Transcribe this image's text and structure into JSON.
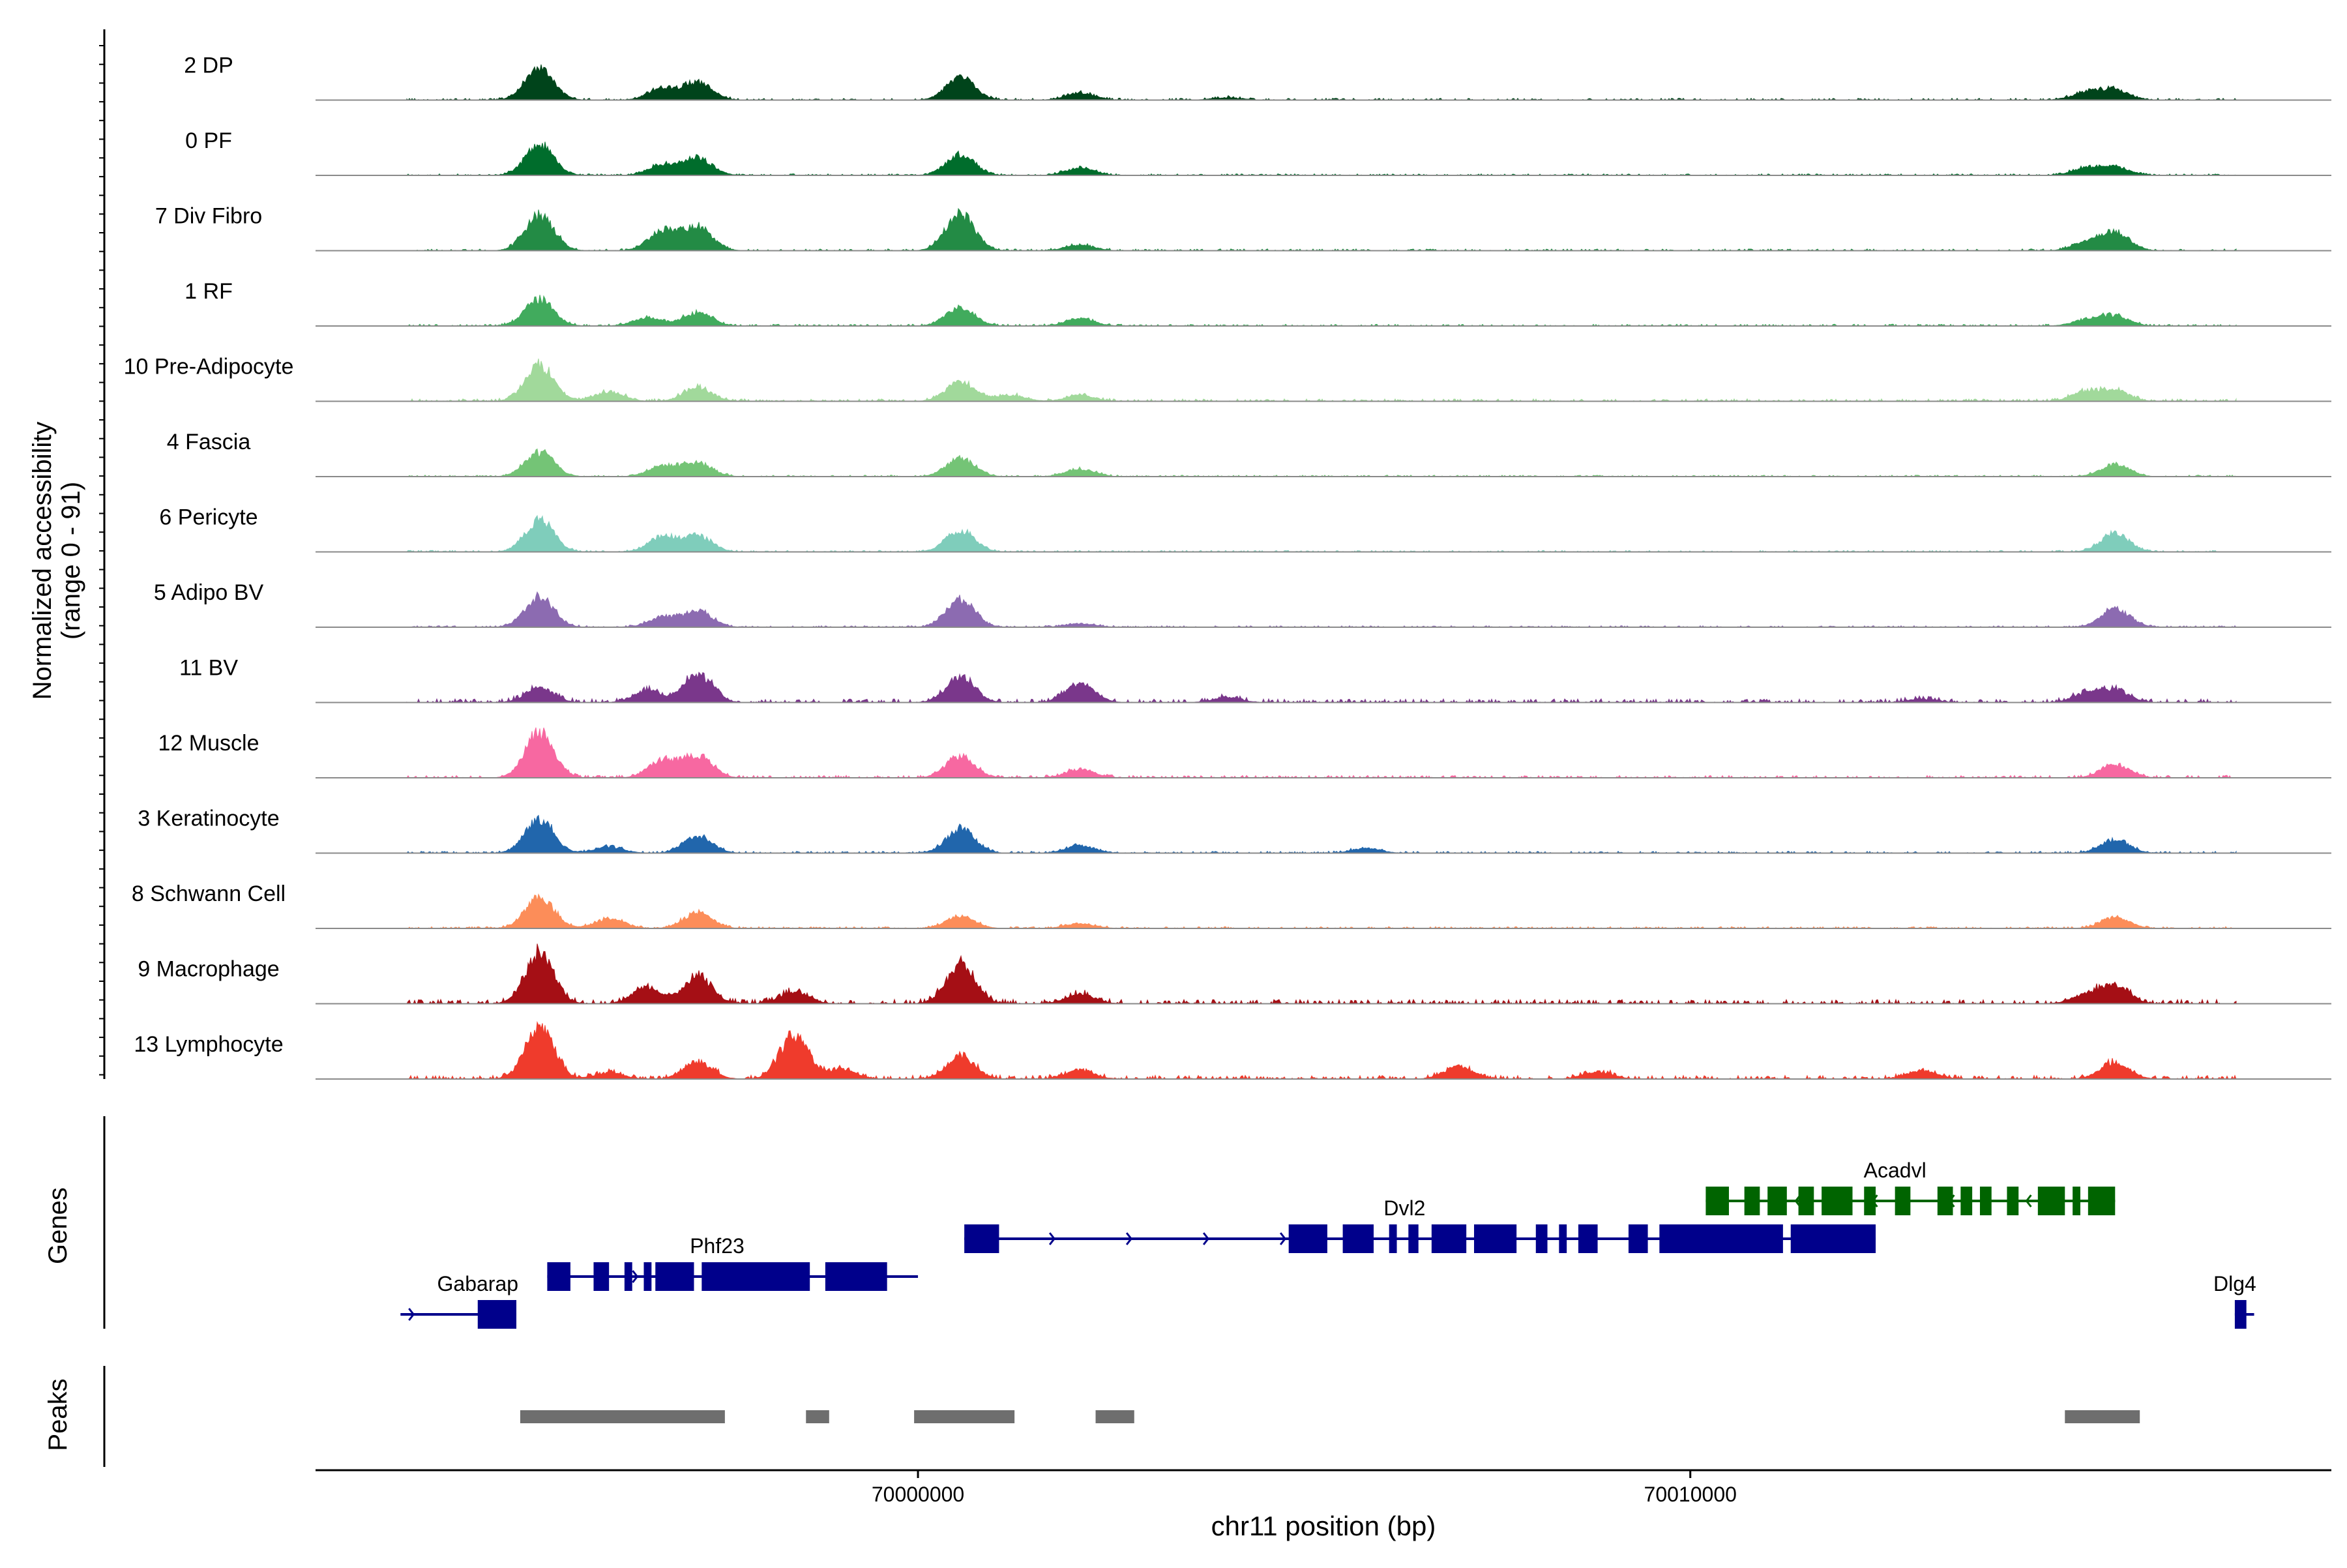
{
  "chart_data": {
    "type": "area",
    "title": "",
    "xlabel": "chr11 position (bp)",
    "ylabel_line1": "Normalized accessibility",
    "ylabel_line2": "(range 0 - 91)",
    "y_range": [
      0,
      91
    ],
    "xlim": [
      69992200,
      70018300
    ],
    "x_ticks": [
      {
        "value": 70000000,
        "label": "70000000"
      },
      {
        "value": 70010000,
        "label": "70010000"
      }
    ],
    "peak_positions": [
      69995430,
      69996800,
      69997700,
      69998450,
      70000530,
      70002150,
      70017050,
      70017980,
      70018100
    ],
    "tracks": [
      {
        "name": "2 DP",
        "color": "#00441b",
        "peaks": [
          [
            69995100,
            0.52
          ],
          [
            69996700,
            0.2
          ],
          [
            69997150,
            0.28
          ],
          [
            70000550,
            0.38
          ],
          [
            70002100,
            0.12
          ],
          [
            70004000,
            0.04
          ],
          [
            70015130,
            0.13
          ],
          [
            70015500,
            0.16
          ]
        ],
        "noise": 0.03
      },
      {
        "name": "0 PF",
        "color": "#006d2c",
        "peaks": [
          [
            69995100,
            0.5
          ],
          [
            69996700,
            0.18
          ],
          [
            69997150,
            0.28
          ],
          [
            70000550,
            0.35
          ],
          [
            70002100,
            0.12
          ],
          [
            70015130,
            0.12
          ],
          [
            70015500,
            0.14
          ]
        ],
        "noise": 0.025
      },
      {
        "name": "7 Div Fibro",
        "color": "#238b45",
        "peaks": [
          [
            69995100,
            0.58
          ],
          [
            69996700,
            0.33
          ],
          [
            69997150,
            0.38
          ],
          [
            70000550,
            0.6
          ],
          [
            70002100,
            0.09
          ],
          [
            70015130,
            0.12
          ],
          [
            70015500,
            0.3
          ]
        ],
        "noise": 0.03
      },
      {
        "name": "1 RF",
        "color": "#41ab5d",
        "peaks": [
          [
            69995100,
            0.44
          ],
          [
            69996500,
            0.14
          ],
          [
            69997150,
            0.22
          ],
          [
            70000550,
            0.3
          ],
          [
            70002100,
            0.12
          ],
          [
            70015130,
            0.1
          ],
          [
            70015500,
            0.16
          ]
        ],
        "noise": 0.03
      },
      {
        "name": "10 Pre-Adipocyte",
        "color": "#a1d99b",
        "peaks": [
          [
            69995100,
            0.58
          ],
          [
            69996000,
            0.16
          ],
          [
            69997150,
            0.22
          ],
          [
            70000550,
            0.32
          ],
          [
            70001200,
            0.1
          ],
          [
            70002100,
            0.1
          ],
          [
            70015130,
            0.16
          ],
          [
            70015500,
            0.16
          ]
        ],
        "noise": 0.04
      },
      {
        "name": "4 Fascia",
        "color": "#74c476",
        "peaks": [
          [
            69995100,
            0.4
          ],
          [
            69996700,
            0.18
          ],
          [
            69997150,
            0.22
          ],
          [
            70000550,
            0.3
          ],
          [
            70002100,
            0.12
          ],
          [
            70015500,
            0.2
          ]
        ],
        "noise": 0.025
      },
      {
        "name": "6 Pericyte",
        "color": "#7fcdbb",
        "peaks": [
          [
            69995100,
            0.52
          ],
          [
            69996700,
            0.24
          ],
          [
            69997150,
            0.26
          ],
          [
            70000550,
            0.36
          ],
          [
            70015500,
            0.3
          ]
        ],
        "noise": 0.025
      },
      {
        "name": "5 Adipo BV",
        "color": "#8c6bb1",
        "peaks": [
          [
            69995100,
            0.5
          ],
          [
            69996700,
            0.16
          ],
          [
            69997150,
            0.26
          ],
          [
            70000550,
            0.46
          ],
          [
            70002100,
            0.06
          ],
          [
            70015500,
            0.3
          ]
        ],
        "noise": 0.025
      },
      {
        "name": "11 BV",
        "color": "#7a378b",
        "peaks": [
          [
            69995100,
            0.24
          ],
          [
            69996500,
            0.2
          ],
          [
            69997150,
            0.46
          ],
          [
            70000550,
            0.42
          ],
          [
            70002100,
            0.32
          ],
          [
            70004000,
            0.08
          ],
          [
            70013000,
            0.06
          ],
          [
            70015130,
            0.14
          ],
          [
            70015500,
            0.2
          ]
        ],
        "noise": 0.06
      },
      {
        "name": "12 Muscle",
        "color": "#f768a1",
        "peaks": [
          [
            69995100,
            0.74
          ],
          [
            69996700,
            0.3
          ],
          [
            69997150,
            0.36
          ],
          [
            70000550,
            0.36
          ],
          [
            70002100,
            0.14
          ],
          [
            70015500,
            0.22
          ]
        ],
        "noise": 0.04
      },
      {
        "name": "3 Keratinocyte",
        "color": "#2166ac",
        "peaks": [
          [
            69995100,
            0.56
          ],
          [
            69996000,
            0.1
          ],
          [
            69997150,
            0.28
          ],
          [
            70000550,
            0.4
          ],
          [
            70002100,
            0.12
          ],
          [
            70005800,
            0.08
          ],
          [
            70015500,
            0.22
          ]
        ],
        "noise": 0.03
      },
      {
        "name": "8 Schwann Cell",
        "color": "#fc8d59",
        "peaks": [
          [
            69995100,
            0.52
          ],
          [
            69996000,
            0.16
          ],
          [
            69997150,
            0.26
          ],
          [
            70000550,
            0.2
          ],
          [
            70002100,
            0.08
          ],
          [
            70015500,
            0.18
          ]
        ],
        "noise": 0.03
      },
      {
        "name": "9 Macrophage",
        "color": "#a50f15",
        "peaks": [
          [
            69995100,
            0.82
          ],
          [
            69996500,
            0.28
          ],
          [
            69997150,
            0.44
          ],
          [
            69998400,
            0.2
          ],
          [
            70000550,
            0.64
          ],
          [
            70002100,
            0.16
          ],
          [
            70015130,
            0.14
          ],
          [
            70015500,
            0.3
          ]
        ],
        "noise": 0.07
      },
      {
        "name": "13 Lymphocyte",
        "color": "#ef3b2c",
        "peaks": [
          [
            69995100,
            0.88
          ],
          [
            69996000,
            0.1
          ],
          [
            69997150,
            0.28
          ],
          [
            69998400,
            0.72
          ],
          [
            69999000,
            0.16
          ],
          [
            70000550,
            0.36
          ],
          [
            70002100,
            0.14
          ],
          [
            70007000,
            0.2
          ],
          [
            70008800,
            0.12
          ],
          [
            70013000,
            0.14
          ],
          [
            70015500,
            0.28
          ]
        ],
        "noise": 0.06
      }
    ],
    "genes": [
      {
        "name": "Gabarap",
        "strand": "+",
        "color": "#00008b",
        "row": 0,
        "start": 69993300,
        "end": 69994800,
        "exons": [
          [
            69994300,
            69994800
          ]
        ],
        "label_x": 69994300
      },
      {
        "name": "Phf23",
        "strand": "+",
        "color": "#00008b",
        "row": 1,
        "start": 69995200,
        "end": 70000000,
        "exons": [
          [
            69995200,
            69995500
          ],
          [
            69995800,
            69996000
          ],
          [
            69996200,
            69996300
          ],
          [
            69996450,
            69996550
          ],
          [
            69996600,
            69997100
          ],
          [
            69997200,
            69998600
          ],
          [
            69998800,
            69999600
          ]
        ],
        "label_x": 69997400
      },
      {
        "name": "Dvl2",
        "strand": "+",
        "color": "#00008b",
        "row": 2,
        "start": 70000600,
        "end": 70012400,
        "exons": [
          [
            70000600,
            70001050
          ],
          [
            70004800,
            70005300
          ],
          [
            70005500,
            70005900
          ],
          [
            70006100,
            70006200
          ],
          [
            70006350,
            70006480
          ],
          [
            70006650,
            70007100
          ],
          [
            70007200,
            70007750
          ],
          [
            70008000,
            70008150
          ],
          [
            70008300,
            70008400
          ],
          [
            70008550,
            70008800
          ],
          [
            70009200,
            70009450
          ],
          [
            70009600,
            70011200
          ],
          [
            70011300,
            70012400
          ]
        ],
        "label_x": 70006300
      },
      {
        "name": "Acadvl",
        "strand": "-",
        "color": "#006400",
        "row": 3,
        "start": 70010200,
        "end": 70015500,
        "exons": [
          [
            70010200,
            70010500
          ],
          [
            70010700,
            70010900
          ],
          [
            70011000,
            70011250
          ],
          [
            70011400,
            70011600
          ],
          [
            70011700,
            70012100
          ],
          [
            70012250,
            70012400
          ],
          [
            70012650,
            70012850
          ],
          [
            70013200,
            70013400
          ],
          [
            70013500,
            70013650
          ],
          [
            70013750,
            70013900
          ],
          [
            70014100,
            70014250
          ],
          [
            70014500,
            70014850
          ],
          [
            70014950,
            70015050
          ],
          [
            70015150,
            70015250
          ],
          [
            70015300,
            70015400
          ],
          [
            70015200,
            70015500
          ]
        ],
        "label_x": 70012650
      },
      {
        "name": "Dlg4",
        "strand": "+",
        "color": "#00008b",
        "row": 0,
        "start": 70017050,
        "end": 70017300,
        "exons": [
          [
            70017050,
            70017200
          ]
        ],
        "label_x": 70017050
      }
    ],
    "peaks_regions": [
      [
        69994850,
        69997500
      ],
      [
        69998550,
        69998850
      ],
      [
        69999950,
        70001250
      ],
      [
        70002300,
        70002800
      ],
      [
        70014850,
        70015820
      ]
    ],
    "panel_labels": {
      "genes": "Genes",
      "peaks": "Peaks"
    }
  }
}
